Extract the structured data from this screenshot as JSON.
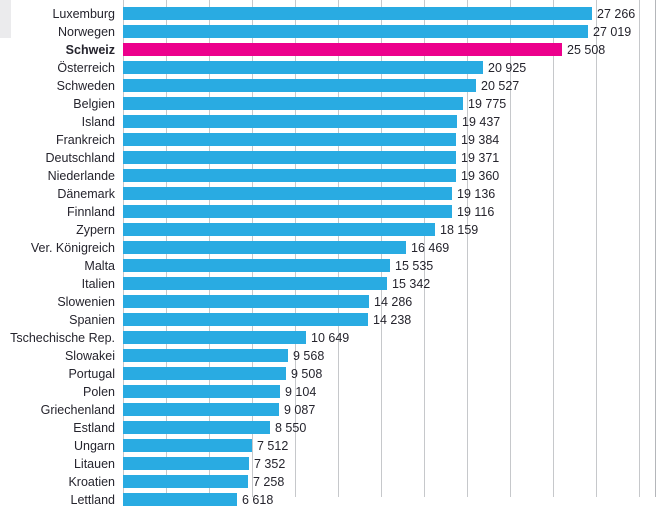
{
  "chart_data": {
    "type": "bar",
    "orientation": "horizontal",
    "categories": [
      "Luxemburg",
      "Norwegen",
      "Schweiz",
      "Österreich",
      "Schweden",
      "Belgien",
      "Island",
      "Frankreich",
      "Deutschland",
      "Niederlande",
      "Dänemark",
      "Finnland",
      "Zypern",
      "Ver. Königreich",
      "Malta",
      "Italien",
      "Slowenien",
      "Spanien",
      "Tschechische Rep.",
      "Slowakei",
      "Portugal",
      "Polen",
      "Griechenland",
      "Estland",
      "Ungarn",
      "Litauen",
      "Kroatien",
      "Lettland"
    ],
    "values": [
      27266,
      27019,
      25508,
      20925,
      20527,
      19775,
      19437,
      19384,
      19371,
      19360,
      19136,
      19116,
      18159,
      16469,
      15535,
      15342,
      14286,
      14238,
      10649,
      9568,
      9508,
      9104,
      9087,
      8550,
      7512,
      7352,
      7258,
      6618
    ],
    "value_labels": [
      "27 266",
      "27 019",
      "25 508",
      "20 925",
      "20 527",
      "19 775",
      "19 437",
      "19 384",
      "19 371",
      "19 360",
      "19 136",
      "19 116",
      "18 159",
      "16 469",
      "15 535",
      "15 342",
      "14 286",
      "14 238",
      "10 649",
      "9 568",
      "9 508",
      "9 104",
      "9 087",
      "8 550",
      "7 512",
      "7 352",
      "7 258",
      "6 618"
    ],
    "highlight_index": 2,
    "highlight_label_bold": true,
    "title": "",
    "xlabel": "",
    "ylabel": "",
    "xlim": [
      0,
      31000
    ],
    "gridline_step": 2500,
    "grid": true,
    "legend_position": "none",
    "colors": {
      "bar": "#29ABE2",
      "highlight": "#EC008C",
      "text": "#25242d",
      "gridline": "#c6c8cb",
      "frame": "#b4b6ba"
    }
  }
}
